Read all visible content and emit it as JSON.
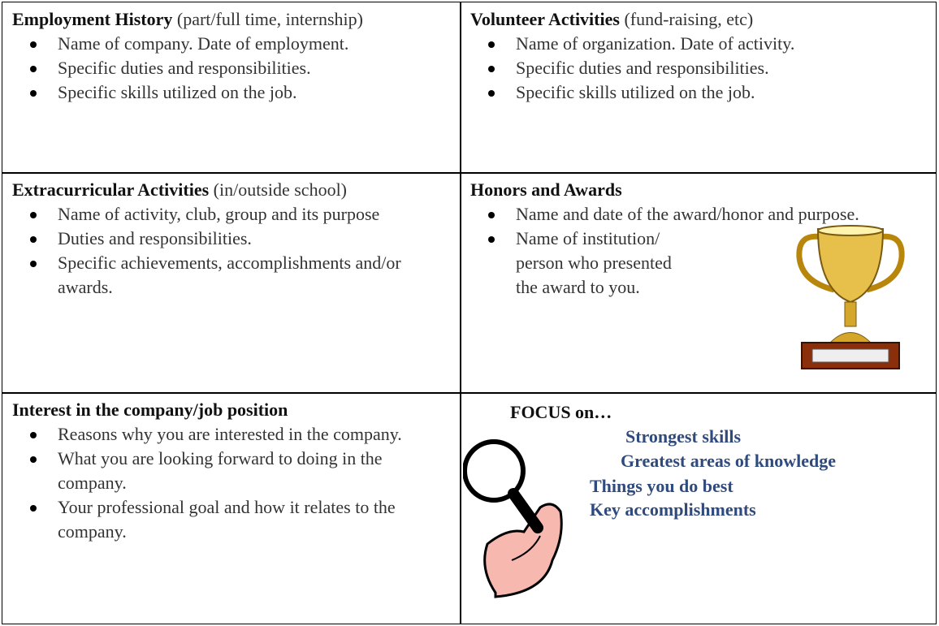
{
  "cells": [
    {
      "title": "Employment History",
      "note": "(part/full time, internship)",
      "bullets": [
        "Name of company. Date of employment.",
        "Specific duties and responsibilities.",
        "Specific skills utilized on the job."
      ]
    },
    {
      "title": "Volunteer Activities",
      "note": "(fund-raising, etc)",
      "bullets": [
        "Name of organization. Date of activity.",
        "Specific duties and responsibilities.",
        "Specific skills utilized on the job."
      ]
    },
    {
      "title": "Extracurricular Activities",
      "note": "(in/outside school)",
      "bullets": [
        "Name of activity, club, group and its purpose",
        "Duties and responsibilities.",
        "Specific achievements, accomplishments and/or awards."
      ]
    },
    {
      "title": "Honors and Awards",
      "bullets": [
        "Name and date of the award/honor and purpose.",
        "Name of institution/ person who presented the award to you."
      ]
    },
    {
      "title": "Interest in the company/job position",
      "bullets": [
        "Reasons why you are interested in the company.",
        "What you are looking forward to doing in the company.",
        "Your professional goal and how it relates to the company."
      ]
    }
  ],
  "focus": {
    "title": "FOCUS on…",
    "items": [
      "Strongest skills",
      "Greatest areas of knowledge",
      "Things you do best",
      "Key accomplishments"
    ]
  }
}
